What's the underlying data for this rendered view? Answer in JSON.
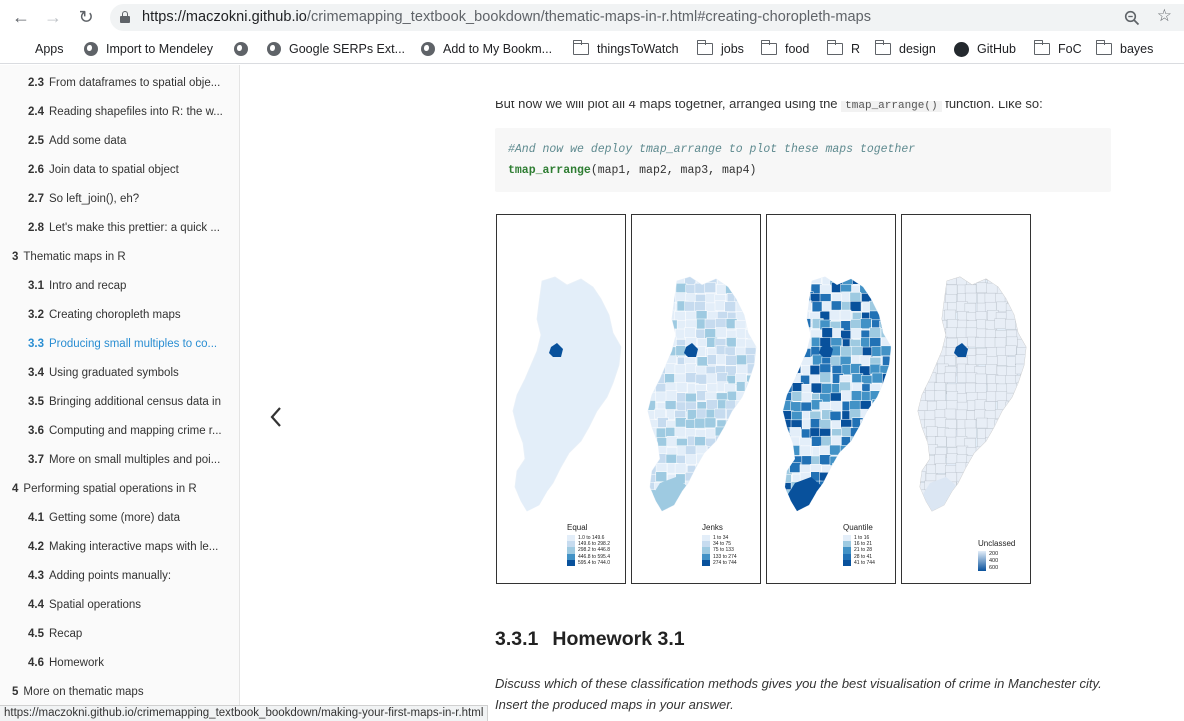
{
  "browser": {
    "url_host": "https://maczokni.github.io",
    "url_path": "/crimemapping_textbook_bookdown/thematic-maps-in-r.html#creating-choropleth-maps",
    "bookmarks": [
      {
        "label": "Apps",
        "icon": "apps-grid-icon"
      },
      {
        "label": "Import to Mendeley",
        "icon": "globe-icon"
      },
      {
        "label": "",
        "icon": "globe-icon"
      },
      {
        "label": "Google SERPs Ext...",
        "icon": "globe-icon"
      },
      {
        "label": "Add to My Bookm...",
        "icon": "globe-icon"
      },
      {
        "label": "thingsToWatch",
        "icon": "folder-icon"
      },
      {
        "label": "jobs",
        "icon": "folder-icon"
      },
      {
        "label": "food",
        "icon": "folder-icon"
      },
      {
        "label": "R",
        "icon": "folder-icon"
      },
      {
        "label": "design",
        "icon": "folder-icon"
      },
      {
        "label": "GitHub",
        "icon": "github-icon"
      },
      {
        "label": "FoC",
        "icon": "folder-icon"
      },
      {
        "label": "bayes",
        "icon": "folder-icon"
      }
    ],
    "status_url": "https://maczokni.github.io/crimemapping_textbook_bookdown/making-your-first-maps-in-r.html"
  },
  "sidebar": {
    "items": [
      {
        "num": "2.3",
        "label": "From dataframes to spatial obje...",
        "level": 2
      },
      {
        "num": "2.4",
        "label": "Reading shapefiles into R: the w...",
        "level": 2
      },
      {
        "num": "2.5",
        "label": "Add some data",
        "level": 2
      },
      {
        "num": "2.6",
        "label": "Join data to spatial object",
        "level": 2
      },
      {
        "num": "2.7",
        "label": "So left_join(), eh?",
        "level": 2
      },
      {
        "num": "2.8",
        "label": "Let's make this prettier: a quick ...",
        "level": 2
      },
      {
        "num": "3",
        "label": "Thematic maps in R",
        "level": 1
      },
      {
        "num": "3.1",
        "label": "Intro and recap",
        "level": 2
      },
      {
        "num": "3.2",
        "label": "Creating choropleth maps",
        "level": 2
      },
      {
        "num": "3.3",
        "label": "Producing small multiples to co...",
        "level": 2,
        "active": true
      },
      {
        "num": "3.4",
        "label": "Using graduated symbols",
        "level": 2
      },
      {
        "num": "3.5",
        "label": "Bringing additional census data in",
        "level": 2
      },
      {
        "num": "3.6",
        "label": "Computing and mapping crime r...",
        "level": 2
      },
      {
        "num": "3.7",
        "label": "More on small multiples and poi...",
        "level": 2
      },
      {
        "num": "4",
        "label": "Performing spatial operations in R",
        "level": 1
      },
      {
        "num": "4.1",
        "label": "Getting some (more) data",
        "level": 2
      },
      {
        "num": "4.2",
        "label": "Making interactive maps with le...",
        "level": 2
      },
      {
        "num": "4.3",
        "label": "Adding points manually:",
        "level": 2
      },
      {
        "num": "4.4",
        "label": "Spatial operations",
        "level": 2
      },
      {
        "num": "4.5",
        "label": "Recap",
        "level": 2
      },
      {
        "num": "4.6",
        "label": "Homework",
        "level": 2
      },
      {
        "num": "5",
        "label": "More on thematic maps",
        "level": 1
      }
    ]
  },
  "content": {
    "intro_before": "But now we will plot all 4 maps together, arranged using the",
    "intro_code": "tmap_arrange()",
    "intro_after": "function. Like so:",
    "code_comment": "#And now we deploy tmap_arrange to plot these maps together",
    "code_fn": "tmap_arrange",
    "code_args": "(map1, map2, map3, map4)",
    "section_num": "3.3.1",
    "section_title": "Homework 3.1",
    "homework_text": "Discuss which of these classification methods gives you the best visualisation of crime in Manchester city. Insert the produced maps in your answer."
  },
  "maps": [
    {
      "title": "Equal",
      "colors": [
        "#e3eef9",
        "#c6dbef",
        "#9ecae1",
        "#4292c6",
        "#08519c"
      ],
      "classes": [
        "1.0 to 149.6",
        "149.6 to 298.2",
        "298.2 to 446.8",
        "446.8 to 595.4",
        "595.4 to 744.0"
      ]
    },
    {
      "title": "Jenks",
      "colors": [
        "#e3eef9",
        "#c6dbef",
        "#9ecae1",
        "#4292c6",
        "#08519c"
      ],
      "classes": [
        "1 to 34",
        "34 to 75",
        "75 to 133",
        "133 to 274",
        "274 to 744"
      ]
    },
    {
      "title": "Quantile",
      "colors": [
        "#e3eef9",
        "#9ecae1",
        "#4292c6",
        "#2171b5",
        "#08519c"
      ],
      "classes": [
        "1 to 16",
        "16 to 21",
        "21 to 28",
        "28 to 41",
        "41 to 744"
      ]
    },
    {
      "title": "Unclassed",
      "colors": [
        "#e3eef9",
        "#08519c"
      ],
      "ticks": [
        "200",
        "400",
        "600"
      ]
    }
  ],
  "colors": {
    "link_active": "#2a8ed2",
    "code_comment": "#5e8a8f",
    "code_fn": "#2e7d32"
  }
}
